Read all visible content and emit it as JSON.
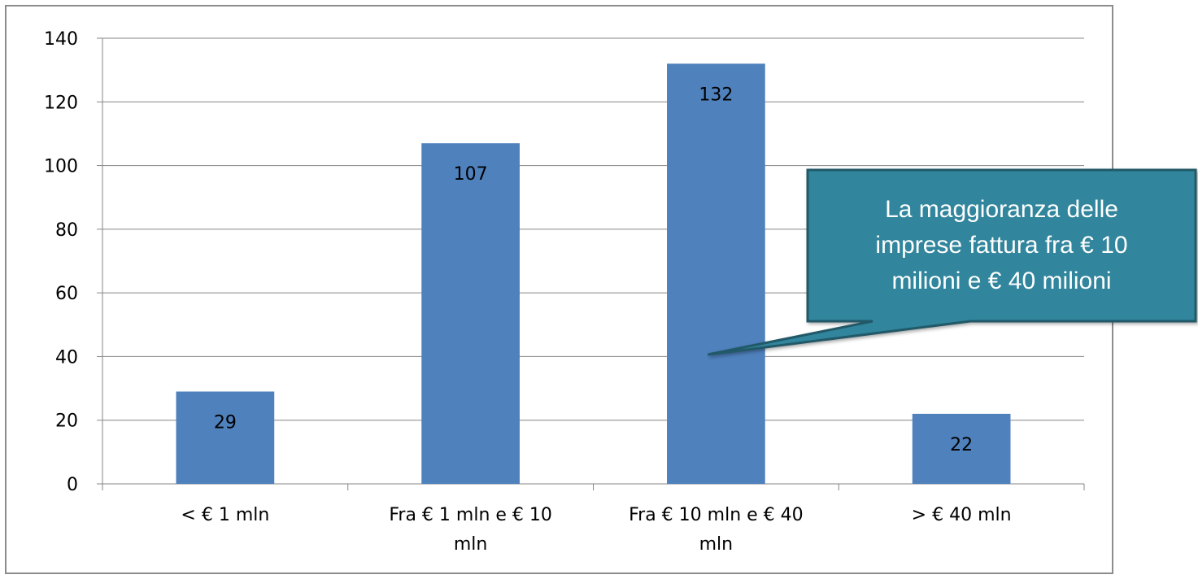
{
  "chart_data": {
    "type": "bar",
    "categories": [
      [
        "< € 1 mln"
      ],
      [
        "Fra € 1 mln e € 10",
        "mln"
      ],
      [
        "Fra € 10 mln e € 40",
        "mln"
      ],
      [
        "> € 40 mln"
      ]
    ],
    "values": [
      29,
      107,
      132,
      22
    ],
    "ylim": [
      0,
      140
    ],
    "yticks": [
      0,
      20,
      40,
      60,
      80,
      100,
      120,
      140
    ],
    "grid": true,
    "legend": "none",
    "bar_color": "#4f81bd",
    "annotation": {
      "lines": [
        "La maggioranza delle",
        "imprese fattura fra € 10",
        "milioni e € 40 milioni"
      ],
      "points_to_category_index": 2,
      "fill_color": "#31859c",
      "border_color": "#215968"
    }
  }
}
